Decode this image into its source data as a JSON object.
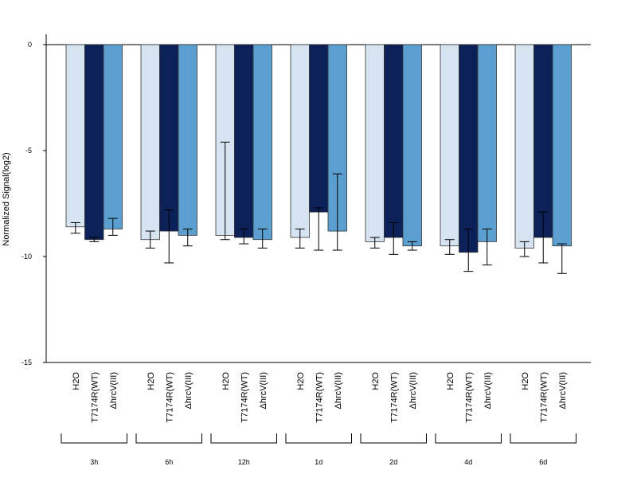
{
  "chart_data": {
    "type": "bar",
    "title": "",
    "xlabel": "",
    "ylabel": "Normalized Signal(log2)",
    "ylim": [
      -15,
      0.5
    ],
    "yticks": [
      0,
      -5,
      -10,
      -15
    ],
    "grid": false,
    "legend": "none",
    "groups": [
      "3h",
      "6h",
      "12h",
      "1d",
      "2d",
      "4d",
      "6d"
    ],
    "series_labels": [
      "H2O",
      "T7174R(WT)",
      "ΔhrcV(III)"
    ],
    "colors": [
      "#d6e4f2",
      "#0b2157",
      "#5a9fcf"
    ],
    "series": [
      {
        "values": [
          -8.6,
          -9.2,
          -9.0,
          -9.1,
          -9.3,
          -9.5,
          -9.6
        ],
        "err_low": [
          -8.9,
          -9.6,
          -9.2,
          -9.6,
          -9.6,
          -9.9,
          -10.0
        ],
        "err_high": [
          -8.4,
          -8.8,
          -4.6,
          -8.7,
          -9.1,
          -9.2,
          -9.3
        ]
      },
      {
        "values": [
          -9.2,
          -8.8,
          -9.1,
          -7.9,
          -9.1,
          -9.8,
          -9.1
        ],
        "err_low": [
          -9.3,
          -10.3,
          -9.4,
          -9.7,
          -9.9,
          -10.7,
          -10.3
        ],
        "err_high": [
          -9.1,
          -7.8,
          -8.7,
          -7.7,
          -8.4,
          -8.7,
          -7.9
        ]
      },
      {
        "values": [
          -8.7,
          -9.0,
          -9.2,
          -8.8,
          -9.5,
          -9.3,
          -9.5
        ],
        "err_low": [
          -9.0,
          -9.5,
          -9.6,
          -9.7,
          -9.7,
          -10.4,
          -10.8
        ],
        "err_high": [
          -8.2,
          -8.7,
          -8.7,
          -6.1,
          -9.3,
          -8.7,
          -9.4
        ]
      }
    ]
  }
}
